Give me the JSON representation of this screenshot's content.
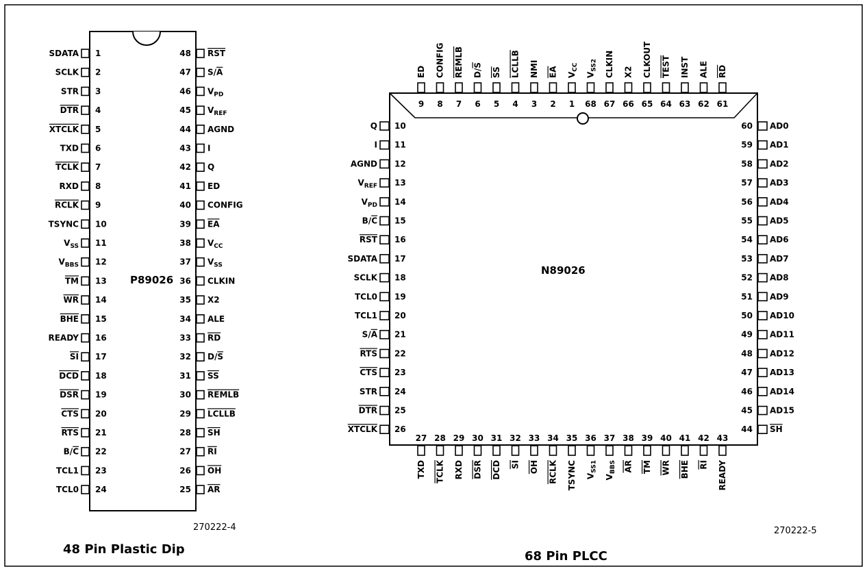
{
  "dip": {
    "chip_name": "P89026",
    "figure_id": "270222-4",
    "caption": "48 Pin Plastic Dip",
    "left_pins": [
      {
        "num": "1",
        "label": "SDATA"
      },
      {
        "num": "2",
        "label": "SCLK"
      },
      {
        "num": "3",
        "label": "STR"
      },
      {
        "num": "4",
        "label": "DTR",
        "overline": true
      },
      {
        "num": "5",
        "label": "XTCLK",
        "overline": true
      },
      {
        "num": "6",
        "label": "TXD"
      },
      {
        "num": "7",
        "label": "TCLK",
        "overline": true
      },
      {
        "num": "8",
        "label": "RXD"
      },
      {
        "num": "9",
        "label": "RCLK",
        "overline": true
      },
      {
        "num": "10",
        "label": "TSYNC"
      },
      {
        "num": "11",
        "label": "V",
        "sub": "SS"
      },
      {
        "num": "12",
        "label": "V",
        "sub": "BBS"
      },
      {
        "num": "13",
        "label": "TM",
        "overline": true
      },
      {
        "num": "14",
        "label": "WR",
        "overline": true
      },
      {
        "num": "15",
        "label": "BHE",
        "overline": true
      },
      {
        "num": "16",
        "label": "READY"
      },
      {
        "num": "17",
        "label": "SI",
        "overline": true
      },
      {
        "num": "18",
        "label": "DCD",
        "overline": true
      },
      {
        "num": "19",
        "label": "DSR",
        "overline": true
      },
      {
        "num": "20",
        "label": "CTS",
        "overline": true
      },
      {
        "num": "21",
        "label": "RTS",
        "overline": true
      },
      {
        "num": "22",
        "label": "B/C",
        "overline_part": "C"
      },
      {
        "num": "23",
        "label": "TCL1"
      },
      {
        "num": "24",
        "label": "TCL0"
      }
    ],
    "right_pins": [
      {
        "num": "48",
        "label": "RST",
        "overline": true
      },
      {
        "num": "47",
        "label": "S/A",
        "overline_part": "A"
      },
      {
        "num": "46",
        "label": "V",
        "sub": "PD"
      },
      {
        "num": "45",
        "label": "V",
        "sub": "REF"
      },
      {
        "num": "44",
        "label": "AGND"
      },
      {
        "num": "43",
        "label": "I"
      },
      {
        "num": "42",
        "label": "Q"
      },
      {
        "num": "41",
        "label": "ED"
      },
      {
        "num": "40",
        "label": "CONFIG"
      },
      {
        "num": "39",
        "label": "EA",
        "overline": true
      },
      {
        "num": "38",
        "label": "V",
        "sub": "CC"
      },
      {
        "num": "37",
        "label": "V",
        "sub": "SS"
      },
      {
        "num": "36",
        "label": "CLKIN"
      },
      {
        "num": "35",
        "label": "X2"
      },
      {
        "num": "34",
        "label": "ALE"
      },
      {
        "num": "33",
        "label": "RD",
        "overline": true
      },
      {
        "num": "32",
        "label": "D/S",
        "overline_part": "S"
      },
      {
        "num": "31",
        "label": "SS",
        "overline": true
      },
      {
        "num": "30",
        "label": "REMLB",
        "overline": true
      },
      {
        "num": "29",
        "label": "LCLLB",
        "overline": true
      },
      {
        "num": "28",
        "label": "SH",
        "overline": true
      },
      {
        "num": "27",
        "label": "RI",
        "overline": true
      },
      {
        "num": "26",
        "label": "OH",
        "overline": true
      },
      {
        "num": "25",
        "label": "AR",
        "overline": true
      }
    ]
  },
  "plcc": {
    "chip_name": "N89026",
    "figure_id": "270222-5",
    "caption": "68 Pin PLCC",
    "top_pins": [
      {
        "num": "9",
        "label": "ED"
      },
      {
        "num": "8",
        "label": "CONFIG"
      },
      {
        "num": "7",
        "label": "REMLB",
        "overline": true
      },
      {
        "num": "6",
        "label": "D/S",
        "overline_part": "S"
      },
      {
        "num": "5",
        "label": "SS",
        "overline": true
      },
      {
        "num": "4",
        "label": "LCLLB",
        "overline": true
      },
      {
        "num": "3",
        "label": "NMI"
      },
      {
        "num": "2",
        "label": "EA",
        "overline": true
      },
      {
        "num": "1",
        "label": "V",
        "sub": "CC"
      },
      {
        "num": "68",
        "label": "V",
        "sub": "SS2"
      },
      {
        "num": "67",
        "label": "CLKIN"
      },
      {
        "num": "66",
        "label": "X2"
      },
      {
        "num": "65",
        "label": "CLKOUT"
      },
      {
        "num": "64",
        "label": "TEST",
        "overline": true
      },
      {
        "num": "63",
        "label": "INST"
      },
      {
        "num": "62",
        "label": "ALE"
      },
      {
        "num": "61",
        "label": "RD",
        "overline": true
      }
    ],
    "left_pins": [
      {
        "num": "10",
        "label": "Q"
      },
      {
        "num": "11",
        "label": "I"
      },
      {
        "num": "12",
        "label": "AGND"
      },
      {
        "num": "13",
        "label": "V",
        "sub": "REF"
      },
      {
        "num": "14",
        "label": "V",
        "sub": "PD"
      },
      {
        "num": "15",
        "label": "B/C",
        "overline_part": "C"
      },
      {
        "num": "16",
        "label": "RST",
        "overline": true
      },
      {
        "num": "17",
        "label": "SDATA"
      },
      {
        "num": "18",
        "label": "SCLK"
      },
      {
        "num": "19",
        "label": "TCL0"
      },
      {
        "num": "20",
        "label": "TCL1"
      },
      {
        "num": "21",
        "label": "S/A",
        "overline_part": "A"
      },
      {
        "num": "22",
        "label": "RTS",
        "overline": true
      },
      {
        "num": "23",
        "label": "CTS",
        "overline": true
      },
      {
        "num": "24",
        "label": "STR"
      },
      {
        "num": "25",
        "label": "DTR",
        "overline": true
      },
      {
        "num": "26",
        "label": "XTCLK",
        "overline": true
      }
    ],
    "right_pins": [
      {
        "num": "60",
        "label": "AD0"
      },
      {
        "num": "59",
        "label": "AD1"
      },
      {
        "num": "58",
        "label": "AD2"
      },
      {
        "num": "57",
        "label": "AD3"
      },
      {
        "num": "56",
        "label": "AD4"
      },
      {
        "num": "55",
        "label": "AD5"
      },
      {
        "num": "54",
        "label": "AD6"
      },
      {
        "num": "53",
        "label": "AD7"
      },
      {
        "num": "52",
        "label": "AD8"
      },
      {
        "num": "51",
        "label": "AD9"
      },
      {
        "num": "50",
        "label": "AD10"
      },
      {
        "num": "49",
        "label": "AD11"
      },
      {
        "num": "48",
        "label": "AD12"
      },
      {
        "num": "47",
        "label": "AD13"
      },
      {
        "num": "46",
        "label": "AD14"
      },
      {
        "num": "45",
        "label": "AD15"
      },
      {
        "num": "44",
        "label": "SH",
        "overline": true
      }
    ],
    "bottom_pins": [
      {
        "num": "27",
        "label": "TXD"
      },
      {
        "num": "28",
        "label": "TCLK",
        "overline": true
      },
      {
        "num": "29",
        "label": "RXD"
      },
      {
        "num": "30",
        "label": "DSR",
        "overline": true
      },
      {
        "num": "31",
        "label": "DCD",
        "overline": true
      },
      {
        "num": "32",
        "label": "SI",
        "overline": true
      },
      {
        "num": "33",
        "label": "OH",
        "overline": true
      },
      {
        "num": "34",
        "label": "RCLK",
        "overline": true
      },
      {
        "num": "35",
        "label": "TSYNC"
      },
      {
        "num": "36",
        "label": "V",
        "sub": "SS1"
      },
      {
        "num": "37",
        "label": "V",
        "sub": "BBS"
      },
      {
        "num": "38",
        "label": "AR",
        "overline": true
      },
      {
        "num": "39",
        "label": "TM",
        "overline": true
      },
      {
        "num": "40",
        "label": "WR",
        "overline": true
      },
      {
        "num": "41",
        "label": "BHE",
        "overline": true
      },
      {
        "num": "42",
        "label": "RI",
        "overline": true
      },
      {
        "num": "43",
        "label": "READY"
      }
    ]
  }
}
